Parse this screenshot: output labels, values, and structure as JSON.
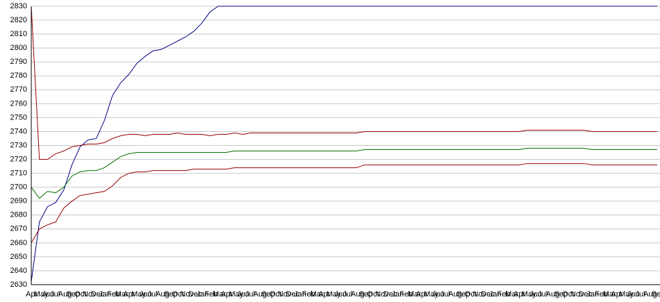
{
  "chart_data": {
    "type": "line",
    "categories": [
      "Apr",
      "May",
      "Jun",
      "Jul",
      "Aug",
      "Sep",
      "Oct",
      "Nov",
      "Dec",
      "Jan",
      "Feb",
      "Mar",
      "Apr",
      "May",
      "Jun",
      "Jul",
      "Aug",
      "Sep",
      "Oct",
      "Nov",
      "Dec",
      "Jan",
      "Feb",
      "Mar",
      "Apr",
      "May",
      "Jun",
      "Jul",
      "Aug",
      "Sep",
      "Oct",
      "Nov",
      "Dec",
      "Jan",
      "Feb",
      "Mar",
      "Apr",
      "May",
      "Jun",
      "Jul",
      "Aug",
      "Sep",
      "Oct",
      "Nov",
      "Dec",
      "Jan",
      "Feb",
      "Mar",
      "Apr",
      "May",
      "Jun",
      "Jul",
      "Aug",
      "Sep",
      "Oct",
      "Nov",
      "Dec",
      "Jan",
      "Feb",
      "Mar",
      "Apr",
      "May",
      "Jun",
      "Jul",
      "Aug",
      "Sep",
      "Oct",
      "Nov",
      "Dec",
      "Jan",
      "Feb",
      "Mar",
      "Apr",
      "May",
      "Jun",
      "Jul",
      "Aug",
      "Sep"
    ],
    "series": [
      {
        "color": "#000080",
        "values": [
          2632,
          2675,
          2686,
          2689,
          2698,
          2716,
          2729,
          2734,
          2735,
          2748,
          2766,
          2775,
          2781,
          2789,
          2794,
          2798,
          2799,
          2802,
          2805,
          2808,
          2812,
          2818,
          2826,
          2830,
          2830,
          2830,
          2830,
          2830,
          2830,
          2830,
          2830,
          2830,
          2830,
          2830,
          2830,
          2830,
          2830,
          2830,
          2830,
          2830,
          2830,
          2830,
          2830,
          2830,
          2830,
          2830,
          2830,
          2830,
          2830,
          2830,
          2830,
          2830,
          2830,
          2830,
          2830,
          2830,
          2830,
          2830,
          2830,
          2830,
          2830,
          2830,
          2830,
          2830,
          2830,
          2830,
          2830,
          2830,
          2830,
          2830,
          2830,
          2830,
          2830,
          2830,
          2830,
          2830,
          2830,
          2830
        ]
      },
      {
        "color": "#990000",
        "values": [
          2830,
          2720,
          2720,
          2724,
          2726,
          2729,
          2730,
          2731,
          2731,
          2732,
          2735,
          2737,
          2738,
          2738,
          2737,
          2738,
          2738,
          2738,
          2739,
          2738,
          2738,
          2738,
          2737,
          2738,
          2738,
          2739,
          2738,
          2739,
          2739,
          2739,
          2739,
          2739,
          2739,
          2739,
          2739,
          2739,
          2739,
          2739,
          2739,
          2739,
          2739,
          2740,
          2740,
          2740,
          2740,
          2740,
          2740,
          2740,
          2740,
          2740,
          2740,
          2740,
          2740,
          2740,
          2740,
          2740,
          2740,
          2740,
          2740,
          2740,
          2740,
          2741,
          2741,
          2741,
          2741,
          2741,
          2741,
          2741,
          2741,
          2740,
          2740,
          2740,
          2740,
          2740,
          2740,
          2740,
          2740,
          2740
        ]
      },
      {
        "color": "#007000",
        "values": [
          2700,
          2692,
          2697,
          2696,
          2700,
          2708,
          2711,
          2712,
          2712,
          2714,
          2718,
          2722,
          2724,
          2725,
          2725,
          2725,
          2725,
          2725,
          2725,
          2725,
          2725,
          2725,
          2725,
          2725,
          2725,
          2726,
          2726,
          2726,
          2726,
          2726,
          2726,
          2726,
          2726,
          2726,
          2726,
          2726,
          2726,
          2726,
          2726,
          2726,
          2726,
          2727,
          2727,
          2727,
          2727,
          2727,
          2727,
          2727,
          2727,
          2727,
          2727,
          2727,
          2727,
          2727,
          2727,
          2727,
          2727,
          2727,
          2727,
          2727,
          2727,
          2728,
          2728,
          2728,
          2728,
          2728,
          2728,
          2728,
          2728,
          2727,
          2727,
          2727,
          2727,
          2727,
          2727,
          2727,
          2727,
          2727
        ]
      },
      {
        "color": "#990000",
        "values": [
          2660,
          2670,
          2673,
          2675,
          2685,
          2690,
          2694,
          2695,
          2696,
          2697,
          2701,
          2707,
          2710,
          2711,
          2711,
          2712,
          2712,
          2712,
          2712,
          2712,
          2713,
          2713,
          2713,
          2713,
          2713,
          2714,
          2714,
          2714,
          2714,
          2714,
          2714,
          2714,
          2714,
          2714,
          2714,
          2714,
          2714,
          2714,
          2714,
          2714,
          2714,
          2716,
          2716,
          2716,
          2716,
          2716,
          2716,
          2716,
          2716,
          2716,
          2716,
          2716,
          2716,
          2716,
          2716,
          2716,
          2716,
          2716,
          2716,
          2716,
          2716,
          2717,
          2717,
          2717,
          2717,
          2717,
          2717,
          2717,
          2717,
          2716,
          2716,
          2716,
          2716,
          2716,
          2716,
          2716,
          2716,
          2716
        ]
      }
    ],
    "ylim": [
      2630,
      2830
    ],
    "yticks": [
      2630,
      2640,
      2650,
      2660,
      2670,
      2680,
      2690,
      2700,
      2710,
      2720,
      2730,
      2740,
      2750,
      2760,
      2770,
      2780,
      2790,
      2800,
      2810,
      2820,
      2830
    ],
    "grid": true
  }
}
